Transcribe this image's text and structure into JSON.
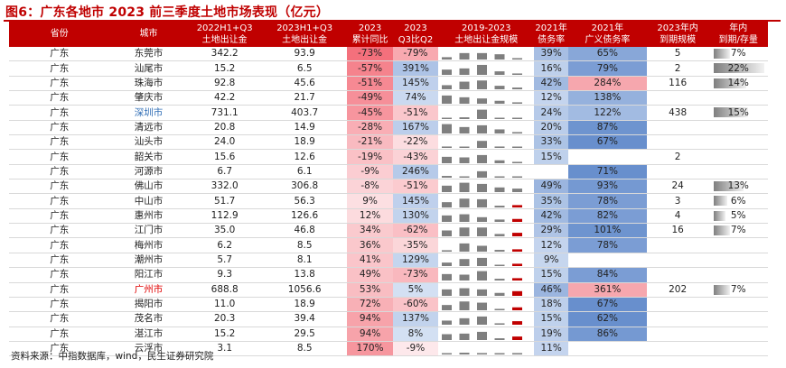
{
  "figure": {
    "title": "图6：广东各地市 2023 前三季度土地市场表现（亿元）",
    "source": "资料来源：中指数据库，wind，民生证券研究院"
  },
  "header": {
    "province": "省份",
    "city": "城市",
    "v2022_line1": "2022H1+Q3",
    "v2022_line2": "土地出让金",
    "v2023_line1": "2023H1+Q3",
    "v2023_line2": "土地出让金",
    "cum_line1": "2023",
    "cum_line2": "累计同比",
    "qq_line1": "2023",
    "qq_line2": "Q3比Q2",
    "spark_line1": "2019-2023",
    "spark_line2": "土地出让金规模",
    "debt_line1": "2021年",
    "debt_line2": "债务率",
    "gdebt_line1": "2021年",
    "gdebt_line2": "广义债务率",
    "mat_line1": "2023年内",
    "mat_line2": "到期规模",
    "ratio_line1": "年内",
    "ratio_line2": "到期/存量"
  },
  "colors": {
    "header_bg": "#c00000",
    "neg_strong": "#f4808a",
    "neg_light": "#fcd3d7",
    "pos_light": "#fde2e4",
    "blue_strong": "#5b86c9",
    "blue_mid": "#8fb0e0",
    "blue_light": "#c8d8ef",
    "pink": "#f6a7ae"
  },
  "rows": [
    {
      "province": "广东",
      "city": "东莞市",
      "city_style": "",
      "v2022": "342.2",
      "v2023": "93.9",
      "cum": "-73%",
      "cum_level": 1.0,
      "qq": "-79%",
      "qq_level": 0.9,
      "debt": "39%",
      "debt_level": 0.35,
      "gdebt": "65%",
      "gdebt_level": 0.6,
      "mat": "5",
      "ratio": "7%",
      "ratio_value": 0.07,
      "spark": [
        0.2,
        0.55,
        0.55,
        0.45,
        0.12
      ],
      "spark_hi": []
    },
    {
      "province": "广东",
      "city": "汕尾市",
      "city_style": "",
      "v2022": "15.2",
      "v2023": "6.5",
      "cum": "-57%",
      "cum_level": 0.85,
      "qq": "391%",
      "qq_level": 0.7,
      "debt": "16%",
      "debt_level": 0.15,
      "gdebt": "79%",
      "gdebt_level": 0.7,
      "mat": "2",
      "ratio": "22%",
      "ratio_value": 0.22,
      "spark": [
        0.45,
        0.55,
        0.85,
        0.3,
        0.12
      ],
      "spark_hi": []
    },
    {
      "province": "广东",
      "city": "珠海市",
      "city_style": "",
      "v2022": "92.8",
      "v2023": "45.6",
      "cum": "-51%",
      "cum_level": 0.8,
      "qq": "145%",
      "qq_level": 0.4,
      "debt": "42%",
      "debt_level": 0.4,
      "gdebt": "284%",
      "gdebt_level": 1.0,
      "mat": "116",
      "ratio": "14%",
      "ratio_value": 0.14,
      "spark": [
        0.35,
        0.65,
        0.75,
        0.3,
        0.15
      ],
      "spark_hi": []
    },
    {
      "province": "广东",
      "city": "肇庆市",
      "city_style": "",
      "v2022": "42.2",
      "v2023": "21.7",
      "cum": "-49%",
      "cum_level": 0.75,
      "qq": "74%",
      "qq_level": 0.2,
      "debt": "12%",
      "debt_level": 0.1,
      "gdebt": "138%",
      "gdebt_level": 0.5,
      "mat": "",
      "ratio": "",
      "ratio_value": 0,
      "spark": [
        0.7,
        0.55,
        0.45,
        0.25,
        0.12
      ],
      "spark_hi": []
    },
    {
      "province": "广东",
      "city": "深圳市",
      "city_style": "blue",
      "v2022": "731.1",
      "v2023": "403.7",
      "cum": "-45%",
      "cum_level": 0.7,
      "qq": "-51%",
      "qq_level": 0.5,
      "debt": "24%",
      "debt_level": 0.22,
      "gdebt": "122%",
      "gdebt_level": 0.4,
      "mat": "438",
      "ratio": "15%",
      "ratio_value": 0.15,
      "spark": [
        0.1,
        0.15,
        0.8,
        0.1,
        0.08
      ],
      "spark_hi": []
    },
    {
      "province": "广东",
      "city": "清远市",
      "city_style": "",
      "v2022": "20.8",
      "v2023": "14.9",
      "cum": "-28%",
      "cum_level": 0.5,
      "qq": "167%",
      "qq_level": 0.45,
      "debt": "20%",
      "debt_level": 0.18,
      "gdebt": "87%",
      "gdebt_level": 0.8,
      "mat": "",
      "ratio": "",
      "ratio_value": 0,
      "spark": [
        0.8,
        0.55,
        0.7,
        0.35,
        0.12
      ],
      "spark_hi": []
    },
    {
      "province": "广东",
      "city": "汕头市",
      "city_style": "",
      "v2022": "24.0",
      "v2023": "18.9",
      "cum": "-21%",
      "cum_level": 0.4,
      "qq": "-22%",
      "qq_level": 0.2,
      "debt": "33%",
      "debt_level": 0.3,
      "gdebt": "67%",
      "gdebt_level": 0.85,
      "mat": "",
      "ratio": "",
      "ratio_value": 0,
      "spark": [
        0.12,
        0.1,
        0.6,
        0.12,
        0.1
      ],
      "spark_hi": []
    },
    {
      "province": "广东",
      "city": "韶关市",
      "city_style": "",
      "v2022": "15.6",
      "v2023": "12.6",
      "cum": "-19%",
      "cum_level": 0.35,
      "qq": "-43%",
      "qq_level": 0.35,
      "debt": "15%",
      "debt_level": 0.14,
      "gdebt": "",
      "gdebt_level": 0,
      "mat": "2",
      "ratio": "",
      "ratio_value": 0,
      "spark": [
        0.55,
        0.5,
        0.7,
        0.25,
        0.12
      ],
      "spark_hi": []
    },
    {
      "province": "广东",
      "city": "河源市",
      "city_style": "",
      "v2022": "6.7",
      "v2023": "6.1",
      "cum": "-9%",
      "cum_level": 0.25,
      "qq": "246%",
      "qq_level": 0.55,
      "debt": "",
      "debt_level": 0,
      "gdebt": "71%",
      "gdebt_level": 0.85,
      "mat": "",
      "ratio": "",
      "ratio_value": 0,
      "spark": [
        0.15,
        0.1,
        0.55,
        0.1,
        0.08
      ],
      "spark_hi": []
    },
    {
      "province": "广东",
      "city": "佛山市",
      "city_style": "",
      "v2022": "332.0",
      "v2023": "306.8",
      "cum": "-8%",
      "cum_level": 0.2,
      "qq": "-51%",
      "qq_level": 0.45,
      "debt": "49%",
      "debt_level": 0.45,
      "gdebt": "93%",
      "gdebt_level": 0.75,
      "mat": "24",
      "ratio": "13%",
      "ratio_value": 0.13,
      "spark": [
        0.55,
        0.8,
        0.7,
        0.4,
        0.3
      ],
      "spark_hi": []
    },
    {
      "province": "广东",
      "city": "中山市",
      "city_style": "",
      "v2022": "51.7",
      "v2023": "56.3",
      "cum": "9%",
      "cum_level": 0.15,
      "qq": "145%",
      "qq_level": 0.4,
      "debt": "35%",
      "debt_level": 0.3,
      "gdebt": "78%",
      "gdebt_level": 0.7,
      "mat": "3",
      "ratio": "6%",
      "ratio_value": 0.06,
      "spark": [
        0.45,
        0.75,
        0.7,
        0.15,
        0.2
      ],
      "spark_hi": [
        4
      ]
    },
    {
      "province": "广东",
      "city": "惠州市",
      "city_style": "",
      "v2022": "112.9",
      "v2023": "126.6",
      "cum": "12%",
      "cum_level": 0.2,
      "qq": "130%",
      "qq_level": 0.35,
      "debt": "42%",
      "debt_level": 0.4,
      "gdebt": "82%",
      "gdebt_level": 0.7,
      "mat": "4",
      "ratio": "5%",
      "ratio_value": 0.05,
      "spark": [
        0.55,
        0.65,
        0.4,
        0.2,
        0.25
      ],
      "spark_hi": [
        4
      ]
    },
    {
      "province": "广东",
      "city": "江门市",
      "city_style": "",
      "v2022": "35.0",
      "v2023": "46.8",
      "cum": "34%",
      "cum_level": 0.4,
      "qq": "-62%",
      "qq_level": 0.6,
      "debt": "29%",
      "debt_level": 0.28,
      "gdebt": "101%",
      "gdebt_level": 0.8,
      "mat": "16",
      "ratio": "7%",
      "ratio_value": 0.07,
      "spark": [
        0.5,
        0.75,
        0.75,
        0.2,
        0.3
      ],
      "spark_hi": [
        4
      ]
    },
    {
      "province": "广东",
      "city": "梅州市",
      "city_style": "",
      "v2022": "6.2",
      "v2023": "8.5",
      "cum": "36%",
      "cum_level": 0.42,
      "qq": "-35%",
      "qq_level": 0.3,
      "debt": "12%",
      "debt_level": 0.1,
      "gdebt": "78%",
      "gdebt_level": 0.7,
      "mat": "",
      "ratio": "",
      "ratio_value": 0,
      "spark": [
        0.12,
        0.7,
        0.5,
        0.15,
        0.2
      ],
      "spark_hi": [
        4
      ]
    },
    {
      "province": "广东",
      "city": "潮州市",
      "city_style": "",
      "v2022": "5.7",
      "v2023": "8.1",
      "cum": "41%",
      "cum_level": 0.45,
      "qq": "129%",
      "qq_level": 0.3,
      "debt": "9%",
      "debt_level": 0.08,
      "gdebt": "",
      "gdebt_level": 0,
      "mat": "",
      "ratio": "",
      "ratio_value": 0,
      "spark": [
        0.3,
        0.6,
        0.7,
        0.1,
        0.2
      ],
      "spark_hi": [
        4
      ]
    },
    {
      "province": "广东",
      "city": "阳江市",
      "city_style": "",
      "v2022": "9.3",
      "v2023": "13.8",
      "cum": "49%",
      "cum_level": 0.5,
      "qq": "-73%",
      "qq_level": 0.7,
      "debt": "15%",
      "debt_level": 0.14,
      "gdebt": "84%",
      "gdebt_level": 0.7,
      "mat": "",
      "ratio": "",
      "ratio_value": 0,
      "spark": [
        0.55,
        0.5,
        0.8,
        0.15,
        0.2
      ],
      "spark_hi": [
        4
      ]
    },
    {
      "province": "广东",
      "city": "广州市",
      "city_style": "red",
      "v2022": "688.8",
      "v2023": "1056.6",
      "cum": "53%",
      "cum_level": 0.55,
      "qq": "5%",
      "qq_level": 0.05,
      "debt": "46%",
      "debt_level": 0.45,
      "gdebt": "361%",
      "gdebt_level": 1.0,
      "mat": "202",
      "ratio": "7%",
      "ratio_value": 0.07,
      "spark": [
        0.55,
        0.65,
        0.55,
        0.25,
        0.4
      ],
      "spark_hi": [
        4
      ]
    },
    {
      "province": "广东",
      "city": "揭阳市",
      "city_style": "",
      "v2022": "11.0",
      "v2023": "18.9",
      "cum": "72%",
      "cum_level": 0.7,
      "qq": "-60%",
      "qq_level": 0.55,
      "debt": "18%",
      "debt_level": 0.16,
      "gdebt": "67%",
      "gdebt_level": 0.85,
      "mat": "",
      "ratio": "",
      "ratio_value": 0,
      "spark": [
        0.45,
        0.75,
        0.65,
        0.12,
        0.25
      ],
      "spark_hi": [
        4
      ]
    },
    {
      "province": "广东",
      "city": "茂名市",
      "city_style": "",
      "v2022": "20.3",
      "v2023": "39.4",
      "cum": "94%",
      "cum_level": 0.85,
      "qq": "137%",
      "qq_level": 0.35,
      "debt": "15%",
      "debt_level": 0.14,
      "gdebt": "62%",
      "gdebt_level": 0.85,
      "mat": "",
      "ratio": "",
      "ratio_value": 0,
      "spark": [
        0.35,
        0.55,
        0.7,
        0.12,
        0.3
      ],
      "spark_hi": [
        4
      ]
    },
    {
      "province": "广东",
      "city": "湛江市",
      "city_style": "",
      "v2022": "15.2",
      "v2023": "29.5",
      "cum": "94%",
      "cum_level": 0.85,
      "qq": "8%",
      "qq_level": 0.05,
      "debt": "19%",
      "debt_level": 0.17,
      "gdebt": "86%",
      "gdebt_level": 0.75,
      "mat": "",
      "ratio": "",
      "ratio_value": 0,
      "spark": [
        0.5,
        0.55,
        0.7,
        0.15,
        0.3
      ],
      "spark_hi": [
        4
      ]
    },
    {
      "province": "广东",
      "city": "云浮市",
      "city_style": "",
      "v2022": "3.1",
      "v2023": "8.5",
      "cum": "170%",
      "cum_level": 1.0,
      "qq": "-9%",
      "qq_level": 0.05,
      "debt": "11%",
      "debt_level": 0.1,
      "gdebt": "",
      "gdebt_level": 0,
      "mat": "",
      "ratio": "",
      "ratio_value": 0,
      "spark": [
        0.1,
        0.15,
        0.12,
        0.05,
        0.12
      ],
      "spark_hi": []
    }
  ]
}
